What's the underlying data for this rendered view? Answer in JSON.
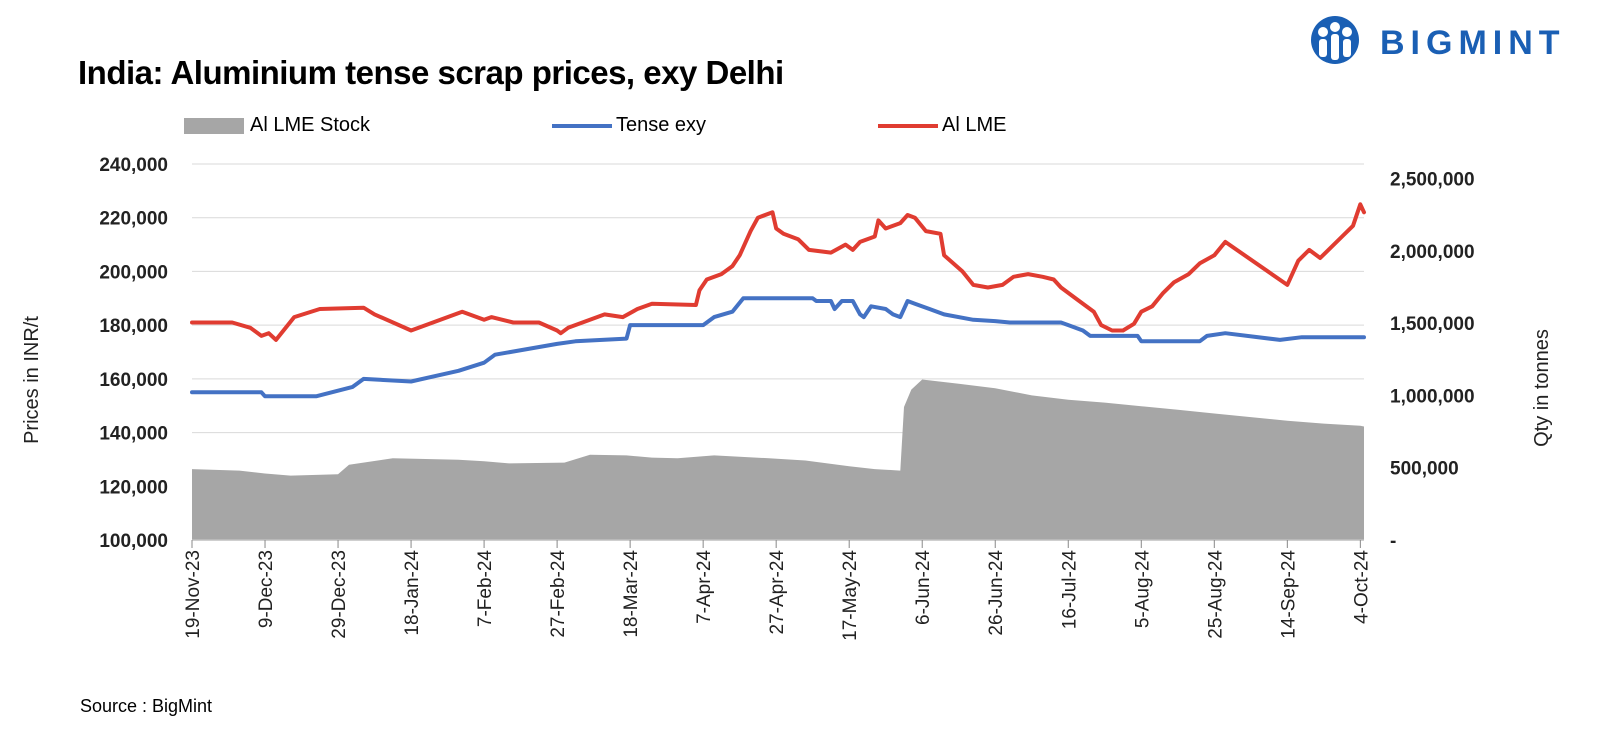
{
  "brand": {
    "name": "BIGMINT",
    "color": "#1a5fb4"
  },
  "footer": {
    "source": "Source : BigMint"
  },
  "chart_data": {
    "type": "line",
    "title": "India: Aluminium tense scrap prices, exy Delhi",
    "ylabel": "Prices in INR/t",
    "y2label": "Qty in tonnes",
    "ylim": [
      100000,
      240000
    ],
    "y2lim": [
      0,
      2600000
    ],
    "y_ticks": [
      "100,000",
      "120,000",
      "140,000",
      "160,000",
      "180,000",
      "200,000",
      "220,000",
      "240,000"
    ],
    "y2_ticks": [
      "-",
      "500,000",
      "1,000,000",
      "1,500,000",
      "2,000,000",
      "2,500,000"
    ],
    "x_ticks": [
      "19-Nov-23",
      "9-Dec-23",
      "29-Dec-23",
      "18-Jan-24",
      "7-Feb-24",
      "27-Feb-24",
      "18-Mar-24",
      "7-Apr-24",
      "27-Apr-24",
      "17-May-24",
      "6-Jun-24",
      "26-Jun-24",
      "16-Jul-24",
      "5-Aug-24",
      "25-Aug-24",
      "14-Sep-24",
      "4-Oct-24"
    ],
    "grid": true,
    "legend_position": "top",
    "series": [
      {
        "name": "Al LME Stock",
        "kind": "area",
        "axis": "right",
        "color": "#a6a6a6",
        "points": [
          [
            "19-Nov-23",
            490000
          ],
          [
            "2-Dec-23",
            480000
          ],
          [
            "9-Dec-23",
            460000
          ],
          [
            "16-Dec-23",
            445000
          ],
          [
            "29-Dec-23",
            455000
          ],
          [
            "1-Jan-24",
            520000
          ],
          [
            "13-Jan-24",
            565000
          ],
          [
            "31-Jan-24",
            555000
          ],
          [
            "7-Feb-24",
            545000
          ],
          [
            "14-Feb-24",
            530000
          ],
          [
            "29-Feb-24",
            535000
          ],
          [
            "7-Mar-24",
            590000
          ],
          [
            "17-Mar-24",
            585000
          ],
          [
            "24-Mar-24",
            570000
          ],
          [
            "31-Mar-24",
            565000
          ],
          [
            "10-Apr-24",
            585000
          ],
          [
            "25-Apr-24",
            565000
          ],
          [
            "5-May-24",
            550000
          ],
          [
            "17-May-24",
            510000
          ],
          [
            "24-May-24",
            490000
          ],
          [
            "31-May-24",
            480000
          ],
          [
            "1-Jun-24",
            920000
          ],
          [
            "3-Jun-24",
            1040000
          ],
          [
            "6-Jun-24",
            1110000
          ],
          [
            "16-Jun-24",
            1080000
          ],
          [
            "26-Jun-24",
            1050000
          ],
          [
            "6-Jul-24",
            1000000
          ],
          [
            "16-Jul-24",
            970000
          ],
          [
            "26-Jul-24",
            950000
          ],
          [
            "5-Aug-24",
            925000
          ],
          [
            "15-Aug-24",
            900000
          ],
          [
            "25-Aug-24",
            875000
          ],
          [
            "4-Sep-24",
            850000
          ],
          [
            "14-Sep-24",
            825000
          ],
          [
            "24-Sep-24",
            805000
          ],
          [
            "4-Oct-24",
            790000
          ],
          [
            "5-Oct-24",
            785000
          ]
        ]
      },
      {
        "name": "Tense exy",
        "kind": "line",
        "axis": "left",
        "color": "#4472c4",
        "points": [
          [
            "19-Nov-23",
            155000
          ],
          [
            "8-Dec-23",
            155000
          ],
          [
            "9-Dec-23",
            153500
          ],
          [
            "23-Dec-23",
            153500
          ],
          [
            "2-Jan-24",
            157000
          ],
          [
            "5-Jan-24",
            160000
          ],
          [
            "18-Jan-24",
            159000
          ],
          [
            "31-Jan-24",
            163000
          ],
          [
            "7-Feb-24",
            166000
          ],
          [
            "10-Feb-24",
            169000
          ],
          [
            "27-Feb-24",
            173000
          ],
          [
            "3-Mar-24",
            174000
          ],
          [
            "17-Mar-24",
            175000
          ],
          [
            "18-Mar-24",
            180000
          ],
          [
            "7-Apr-24",
            180000
          ],
          [
            "10-Apr-24",
            183000
          ],
          [
            "15-Apr-24",
            185000
          ],
          [
            "18-Apr-24",
            190000
          ],
          [
            "7-May-24",
            190000
          ],
          [
            "8-May-24",
            189000
          ],
          [
            "12-May-24",
            189000
          ],
          [
            "13-May-24",
            186000
          ],
          [
            "15-May-24",
            189000
          ],
          [
            "18-May-24",
            189000
          ],
          [
            "20-May-24",
            184000
          ],
          [
            "21-May-24",
            183000
          ],
          [
            "23-May-24",
            187000
          ],
          [
            "27-May-24",
            186000
          ],
          [
            "29-May-24",
            184000
          ],
          [
            "31-May-24",
            183000
          ],
          [
            "2-Jun-24",
            189000
          ],
          [
            "4-Jun-24",
            188000
          ],
          [
            "8-Jun-24",
            186000
          ],
          [
            "12-Jun-24",
            184000
          ],
          [
            "20-Jun-24",
            182000
          ],
          [
            "26-Jun-24",
            181500
          ],
          [
            "30-Jun-24",
            181000
          ],
          [
            "14-Jul-24",
            181000
          ],
          [
            "16-Jul-24",
            180000
          ],
          [
            "20-Jul-24",
            178000
          ],
          [
            "22-Jul-24",
            176000
          ],
          [
            "4-Aug-24",
            176000
          ],
          [
            "5-Aug-24",
            174000
          ],
          [
            "21-Aug-24",
            174000
          ],
          [
            "23-Aug-24",
            176000
          ],
          [
            "28-Aug-24",
            177000
          ],
          [
            "12-Sep-24",
            174500
          ],
          [
            "18-Sep-24",
            175500
          ],
          [
            "5-Oct-24",
            175500
          ]
        ]
      },
      {
        "name": "Al LME",
        "kind": "line",
        "axis": "left",
        "color": "#e03c31",
        "points": [
          [
            "19-Nov-23",
            181000
          ],
          [
            "30-Nov-23",
            181000
          ],
          [
            "5-Dec-23",
            179000
          ],
          [
            "8-Dec-23",
            176000
          ],
          [
            "10-Dec-23",
            177000
          ],
          [
            "12-Dec-23",
            174500
          ],
          [
            "17-Dec-23",
            183000
          ],
          [
            "24-Dec-23",
            186000
          ],
          [
            "5-Jan-24",
            186500
          ],
          [
            "8-Jan-24",
            184000
          ],
          [
            "18-Jan-24",
            178000
          ],
          [
            "1-Feb-24",
            185000
          ],
          [
            "7-Feb-24",
            182000
          ],
          [
            "9-Feb-24",
            183000
          ],
          [
            "15-Feb-24",
            181000
          ],
          [
            "22-Feb-24",
            181000
          ],
          [
            "27-Feb-24",
            178000
          ],
          [
            "28-Feb-24",
            177000
          ],
          [
            "1-Mar-24",
            179000
          ],
          [
            "11-Mar-24",
            184000
          ],
          [
            "16-Mar-24",
            183000
          ],
          [
            "20-Mar-24",
            186000
          ],
          [
            "24-Mar-24",
            188000
          ],
          [
            "5-Apr-24",
            187500
          ],
          [
            "6-Apr-24",
            193000
          ],
          [
            "8-Apr-24",
            197000
          ],
          [
            "12-Apr-24",
            199000
          ],
          [
            "15-Apr-24",
            202000
          ],
          [
            "17-Apr-24",
            206000
          ],
          [
            "20-Apr-24",
            215000
          ],
          [
            "22-Apr-24",
            220000
          ],
          [
            "26-Apr-24",
            222000
          ],
          [
            "27-Apr-24",
            216000
          ],
          [
            "29-Apr-24",
            214000
          ],
          [
            "3-May-24",
            212000
          ],
          [
            "6-May-24",
            208000
          ],
          [
            "12-May-24",
            207000
          ],
          [
            "16-May-24",
            210000
          ],
          [
            "18-May-24",
            208000
          ],
          [
            "20-May-24",
            211000
          ],
          [
            "24-May-24",
            213000
          ],
          [
            "25-May-24",
            219000
          ],
          [
            "27-May-24",
            216000
          ],
          [
            "31-May-24",
            218000
          ],
          [
            "2-Jun-24",
            221000
          ],
          [
            "4-Jun-24",
            220000
          ],
          [
            "7-Jun-24",
            215000
          ],
          [
            "11-Jun-24",
            214000
          ],
          [
            "12-Jun-24",
            206000
          ],
          [
            "17-Jun-24",
            200000
          ],
          [
            "20-Jun-24",
            195000
          ],
          [
            "24-Jun-24",
            194000
          ],
          [
            "28-Jun-24",
            195000
          ],
          [
            "1-Jul-24",
            198000
          ],
          [
            "5-Jul-24",
            199000
          ],
          [
            "9-Jul-24",
            198000
          ],
          [
            "12-Jul-24",
            197000
          ],
          [
            "14-Jul-24",
            194000
          ],
          [
            "19-Jul-24",
            189000
          ],
          [
            "23-Jul-24",
            185000
          ],
          [
            "25-Jul-24",
            180000
          ],
          [
            "28-Jul-24",
            178000
          ],
          [
            "31-Jul-24",
            178000
          ],
          [
            "3-Aug-24",
            180500
          ],
          [
            "5-Aug-24",
            185000
          ],
          [
            "8-Aug-24",
            187000
          ],
          [
            "11-Aug-24",
            192000
          ],
          [
            "14-Aug-24",
            196000
          ],
          [
            "18-Aug-24",
            199000
          ],
          [
            "21-Aug-24",
            203000
          ],
          [
            "25-Aug-24",
            206000
          ],
          [
            "28-Aug-24",
            211000
          ],
          [
            "14-Sep-24",
            195000
          ],
          [
            "17-Sep-24",
            204000
          ],
          [
            "20-Sep-24",
            208000
          ],
          [
            "23-Sep-24",
            205000
          ],
          [
            "29-Sep-24",
            213000
          ],
          [
            "2-Oct-24",
            217000
          ],
          [
            "4-Oct-24",
            225000
          ],
          [
            "5-Oct-24",
            222000
          ]
        ]
      }
    ]
  }
}
